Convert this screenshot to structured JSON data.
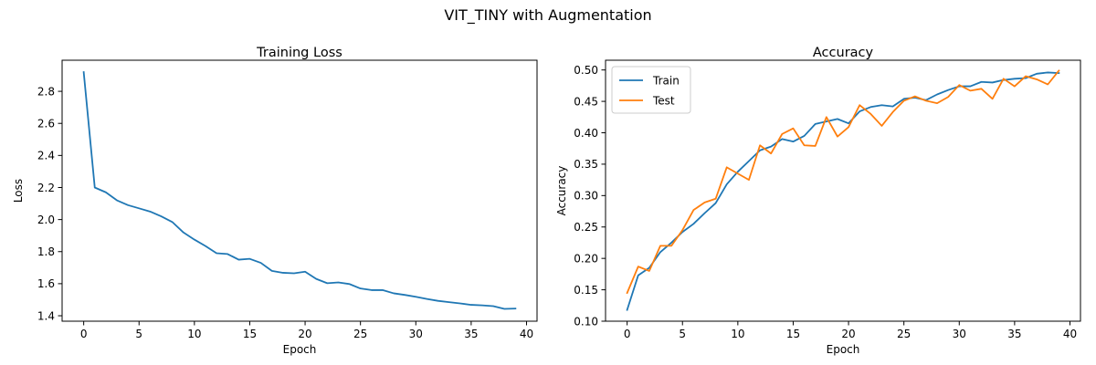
{
  "figure": {
    "title": "VIT_TINY with Augmentation"
  },
  "chart_data": [
    {
      "type": "line",
      "title": "Training Loss",
      "xlabel": "Epoch",
      "ylabel": "Loss",
      "xlim": [
        -1.95,
        40.95
      ],
      "ylim": [
        1.366,
        2.994
      ],
      "xticks": [
        0,
        5,
        10,
        15,
        20,
        25,
        30,
        35,
        40
      ],
      "yticks": [
        1.4,
        1.6,
        1.8,
        2.0,
        2.2,
        2.4,
        2.6,
        2.8
      ],
      "ytick_labels": [
        "1.4",
        "1.6",
        "1.8",
        "2.0",
        "2.2",
        "2.4",
        "2.6",
        "2.8"
      ],
      "grid": false,
      "series": [
        {
          "color": "#1f77b4",
          "x": [
            0,
            1,
            2,
            3,
            4,
            5,
            6,
            7,
            8,
            9,
            10,
            11,
            12,
            13,
            14,
            15,
            16,
            17,
            18,
            19,
            20,
            21,
            22,
            23,
            24,
            25,
            26,
            27,
            28,
            29,
            30,
            31,
            32,
            33,
            34,
            35,
            36,
            37,
            38,
            39
          ],
          "values": [
            2.92,
            2.2,
            2.17,
            2.12,
            2.09,
            2.07,
            2.05,
            2.02,
            1.985,
            1.92,
            1.875,
            1.835,
            1.79,
            1.785,
            1.75,
            1.755,
            1.73,
            1.68,
            1.668,
            1.665,
            1.675,
            1.63,
            1.603,
            1.608,
            1.598,
            1.57,
            1.56,
            1.56,
            1.54,
            1.53,
            1.518,
            1.505,
            1.493,
            1.485,
            1.477,
            1.468,
            1.465,
            1.46,
            1.443,
            1.445
          ]
        }
      ]
    },
    {
      "type": "line",
      "title": "Accuracy",
      "xlabel": "Epoch",
      "ylabel": "Accuracy",
      "xlim": [
        -1.95,
        40.95
      ],
      "ylim": [
        0.1,
        0.5155
      ],
      "xticks": [
        0,
        5,
        10,
        15,
        20,
        25,
        30,
        35,
        40
      ],
      "yticks": [
        0.1,
        0.15,
        0.2,
        0.25,
        0.3,
        0.35,
        0.4,
        0.45,
        0.5
      ],
      "ytick_labels": [
        "0.10",
        "0.15",
        "0.20",
        "0.25",
        "0.30",
        "0.35",
        "0.40",
        "0.45",
        "0.50"
      ],
      "grid": false,
      "legend": "top-left",
      "series": [
        {
          "name": "Train",
          "color": "#1f77b4",
          "x": [
            0,
            1,
            2,
            3,
            4,
            5,
            6,
            7,
            8,
            9,
            10,
            11,
            12,
            13,
            14,
            15,
            16,
            17,
            18,
            19,
            20,
            21,
            22,
            23,
            24,
            25,
            26,
            27,
            28,
            29,
            30,
            31,
            32,
            33,
            34,
            35,
            36,
            37,
            38,
            39
          ],
          "values": [
            0.118,
            0.173,
            0.185,
            0.21,
            0.225,
            0.242,
            0.255,
            0.272,
            0.288,
            0.318,
            0.338,
            0.355,
            0.372,
            0.378,
            0.39,
            0.386,
            0.395,
            0.414,
            0.418,
            0.422,
            0.415,
            0.434,
            0.441,
            0.444,
            0.442,
            0.454,
            0.456,
            0.452,
            0.461,
            0.468,
            0.474,
            0.474,
            0.481,
            0.48,
            0.484,
            0.486,
            0.487,
            0.494,
            0.496,
            0.495
          ]
        },
        {
          "name": "Test",
          "color": "#ff7f0e",
          "x": [
            0,
            1,
            2,
            3,
            4,
            5,
            6,
            7,
            8,
            9,
            10,
            11,
            12,
            13,
            14,
            15,
            16,
            17,
            18,
            19,
            20,
            21,
            22,
            23,
            24,
            25,
            26,
            27,
            28,
            29,
            30,
            31,
            32,
            33,
            34,
            35,
            36,
            37,
            38,
            39
          ],
          "values": [
            0.145,
            0.187,
            0.18,
            0.22,
            0.22,
            0.245,
            0.277,
            0.289,
            0.295,
            0.345,
            0.335,
            0.325,
            0.38,
            0.367,
            0.398,
            0.407,
            0.38,
            0.379,
            0.425,
            0.394,
            0.409,
            0.444,
            0.43,
            0.411,
            0.433,
            0.451,
            0.458,
            0.451,
            0.447,
            0.457,
            0.476,
            0.467,
            0.47,
            0.454,
            0.486,
            0.474,
            0.49,
            0.485,
            0.477,
            0.499
          ]
        }
      ]
    }
  ]
}
